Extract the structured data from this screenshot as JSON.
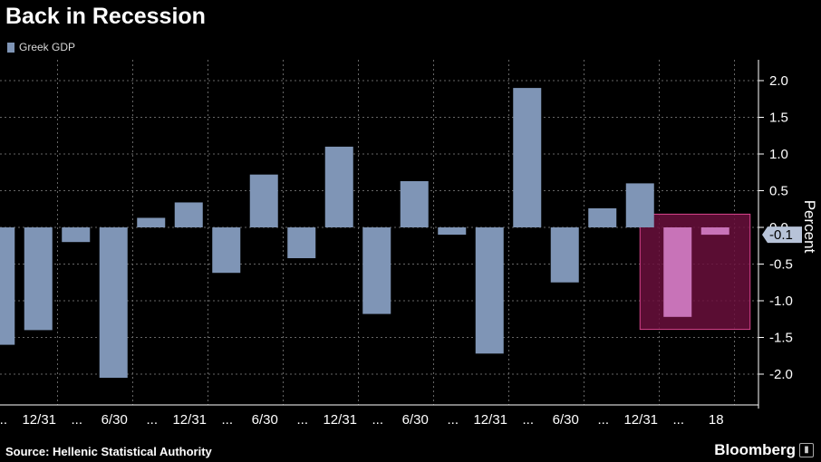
{
  "title": "Back in Recession",
  "source": "Source: Hellenic Statistical Authority",
  "brand": "Bloomberg",
  "brand_icon": "bloomberg-chart-icon",
  "colors": {
    "bar": "#7f95b6",
    "highlight_bar": "#c873b8",
    "highlight_fill": "#6a0f3c",
    "highlight_stroke": "#d8448c",
    "grid": "#666666",
    "axis_text": "#ffffff",
    "callout_bg": "#b7c3d8"
  },
  "chart_data": {
    "type": "bar",
    "title": "Back in Recession",
    "ylabel": "Percent",
    "ylim": [
      -2.3,
      2.3
    ],
    "yticks": [
      2.0,
      1.5,
      1.0,
      0.5,
      0.0,
      -0.5,
      -1.0,
      -1.5,
      -2.0
    ],
    "ytick_labels": [
      "2.0",
      "1.5",
      "1.0",
      "0.5",
      "0.0",
      "-0.5",
      "-1.0",
      "-1.5",
      "-2.0"
    ],
    "grid": true,
    "legend_position": "top-left",
    "series": [
      {
        "name": "Greek GDP",
        "values": [
          -1.6,
          -1.4,
          -0.2,
          -2.05,
          0.13,
          0.34,
          -0.62,
          0.72,
          -0.42,
          1.1,
          -1.18,
          0.63,
          -0.1,
          -1.72,
          1.9,
          -0.75,
          0.26,
          0.6,
          -1.22,
          -0.1
        ]
      }
    ],
    "xtick_labels": [
      "...",
      "12/31",
      "...",
      "6/30",
      "...",
      "12/31",
      "...",
      "6/30",
      "...",
      "12/31",
      "...",
      "6/30",
      "...",
      "12/31",
      "...",
      "6/30",
      "...",
      "12/31",
      "...",
      "18"
    ],
    "highlight": {
      "from_index": 18,
      "to_index": 19
    },
    "latest_value_label": "-0.1"
  }
}
